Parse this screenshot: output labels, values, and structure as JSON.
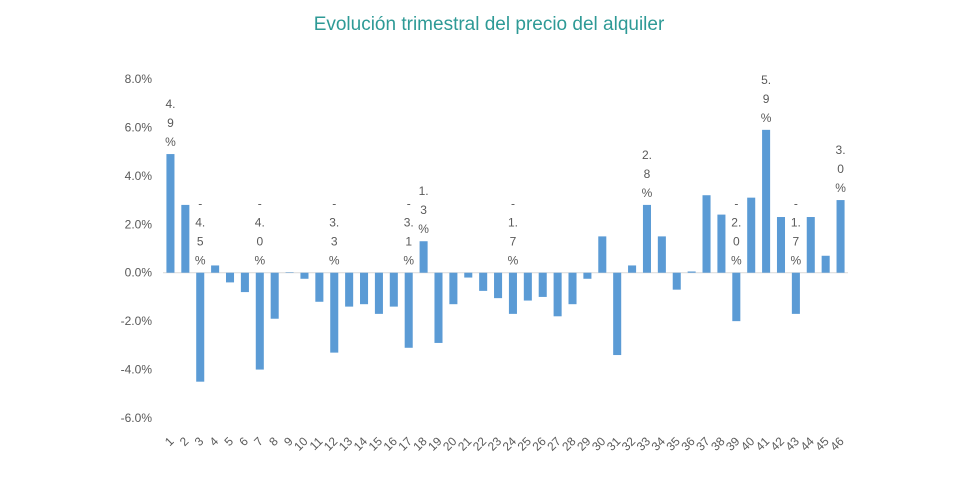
{
  "chart_data": {
    "type": "bar",
    "title": "Evolución trimestral del precio del alquiler",
    "categories": [
      "1",
      "2",
      "3",
      "4",
      "5",
      "6",
      "7",
      "8",
      "9",
      "10",
      "11",
      "12",
      "13",
      "14",
      "15",
      "16",
      "17",
      "18",
      "19",
      "20",
      "21",
      "22",
      "23",
      "24",
      "25",
      "26",
      "27",
      "28",
      "29",
      "30",
      "31",
      "32",
      "33",
      "34",
      "35",
      "36",
      "37",
      "38",
      "39",
      "40",
      "41",
      "42",
      "43",
      "44",
      "45",
      "46"
    ],
    "values": [
      4.9,
      2.8,
      -4.5,
      0.3,
      -0.4,
      -0.8,
      -4.0,
      -1.9,
      0.02,
      -0.25,
      -1.2,
      -3.3,
      -1.4,
      -1.3,
      -1.7,
      -1.4,
      -3.1,
      1.3,
      -2.9,
      -1.3,
      -0.2,
      -0.75,
      -1.05,
      -1.7,
      -1.15,
      -1.0,
      -1.8,
      -1.3,
      -0.25,
      1.5,
      -3.4,
      0.3,
      2.8,
      1.5,
      -0.7,
      0.05,
      3.2,
      2.4,
      -2.0,
      3.1,
      5.9,
      2.3,
      -1.7,
      2.3,
      0.7,
      3.0
    ],
    "value_labels": [
      "4.9%",
      null,
      "-4.5%",
      null,
      null,
      null,
      "-4.0%",
      null,
      null,
      null,
      null,
      "-3.3%",
      null,
      null,
      null,
      null,
      "-3.1%",
      "1.3%",
      null,
      null,
      null,
      null,
      null,
      "-1.7%",
      null,
      null,
      null,
      null,
      null,
      null,
      null,
      null,
      "2.8%",
      null,
      null,
      null,
      null,
      null,
      "-2.0%",
      null,
      "5.9%",
      null,
      "-1.7%",
      null,
      null,
      "3.0%"
    ],
    "color": "#5b9bd5",
    "ylim": [
      -6,
      8
    ],
    "yticks": [
      {
        "value": -6,
        "label": "-6.0%"
      },
      {
        "value": -4,
        "label": "-4.0%"
      },
      {
        "value": -2,
        "label": "-2.0%"
      },
      {
        "value": 0,
        "label": "0.0%"
      },
      {
        "value": 2,
        "label": "2.0%"
      },
      {
        "value": 4,
        "label": "4.0%"
      },
      {
        "value": 6,
        "label": "6.0%"
      },
      {
        "value": 8,
        "label": "8.0%"
      }
    ],
    "grid": false
  }
}
